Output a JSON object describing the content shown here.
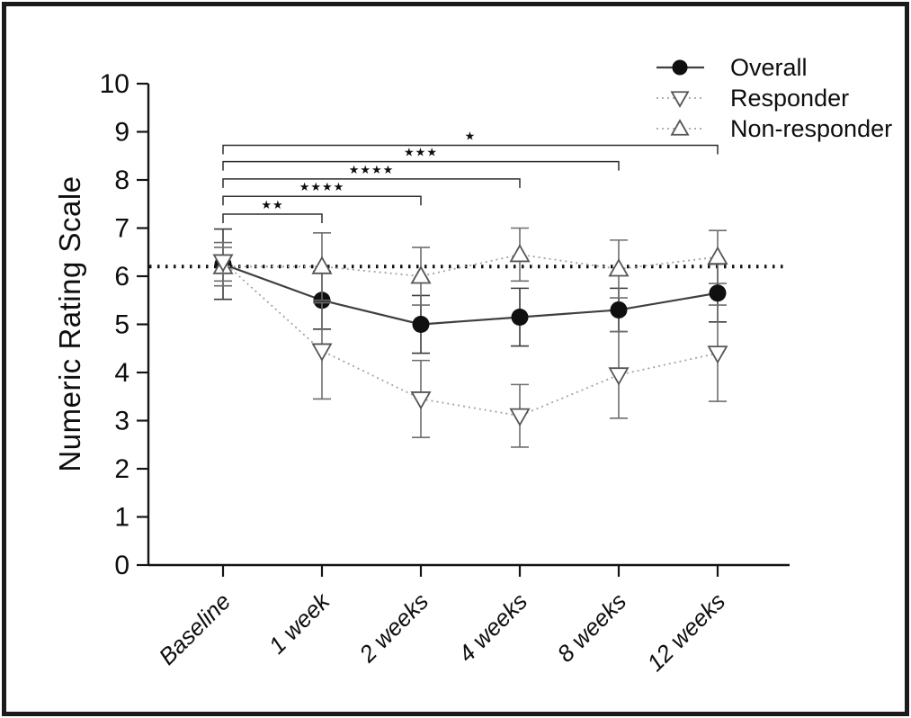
{
  "figure": {
    "background": "#ffffff",
    "border_color": "#1b1b1b"
  },
  "chart_data": {
    "type": "line",
    "title": "",
    "xlabel": "",
    "ylabel": "Numeric Rating Scale",
    "ylim": [
      0,
      10
    ],
    "yticks": [
      0,
      1,
      2,
      3,
      4,
      5,
      6,
      7,
      8,
      9,
      10
    ],
    "grid": false,
    "categories": [
      "Baseline",
      "1 week",
      "2 weeks",
      "4 weeks",
      "8 weeks",
      "12 weeks"
    ],
    "reference_line": {
      "value": 6.2,
      "style": "dotted",
      "color": "#111111"
    },
    "series": [
      {
        "name": "Overall",
        "marker": "filled-circle",
        "line_style": "solid",
        "line_color": "#3f3f3f",
        "marker_color": "#101010",
        "error_color": "#3c3c3c",
        "values": [
          6.25,
          5.5,
          5.0,
          5.15,
          5.3,
          5.65
        ],
        "errors": [
          0.73,
          0.6,
          0.6,
          0.6,
          0.45,
          0.6
        ]
      },
      {
        "name": "Non-responder",
        "marker": "open-triangle-up",
        "line_style": "dotted",
        "line_color": "#a3a3a3",
        "marker_color": "#565656",
        "error_color": "#6e6e6e",
        "values": [
          6.2,
          6.2,
          6.0,
          6.45,
          6.15,
          6.4
        ],
        "errors": [
          0.4,
          0.7,
          0.6,
          0.55,
          0.6,
          0.55
        ]
      },
      {
        "name": "Responder",
        "marker": "open-triangle-down",
        "line_style": "dotted",
        "line_color": "#a3a3a3",
        "marker_color": "#565656",
        "error_color": "#6e6e6e",
        "values": [
          6.3,
          4.45,
          3.45,
          3.1,
          3.95,
          4.4
        ],
        "errors": [
          0.4,
          1.0,
          0.8,
          0.65,
          0.9,
          1.0
        ]
      }
    ],
    "legend": {
      "position": "top-right",
      "entries": [
        "Overall",
        "Responder",
        "Non-responder"
      ]
    },
    "significance_brackets": [
      {
        "from": "Baseline",
        "to": "1 week",
        "stars": "**",
        "height": 7.29
      },
      {
        "from": "Baseline",
        "to": "2 weeks",
        "stars": "****",
        "height": 7.66
      },
      {
        "from": "Baseline",
        "to": "4 weeks",
        "stars": "****",
        "height": 8.02
      },
      {
        "from": "Baseline",
        "to": "8 weeks",
        "stars": "***",
        "height": 8.38
      },
      {
        "from": "Baseline",
        "to": "12 weeks",
        "stars": "*",
        "height": 8.72
      }
    ]
  }
}
